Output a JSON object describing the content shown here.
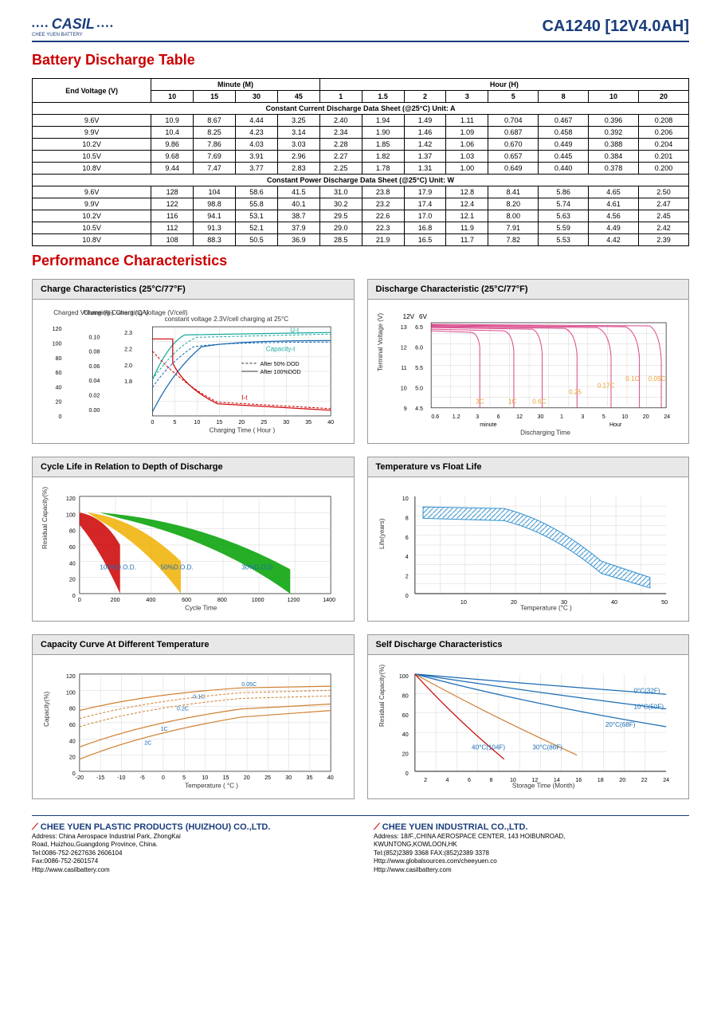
{
  "header": {
    "logo_text": "CASIL",
    "logo_sub": "CHEE YUEN BATTERY",
    "product_code": "CA1240 [12V4.0AH]"
  },
  "section1_title": "Battery Discharge Table",
  "section2_title": "Performance Characteristics",
  "table": {
    "end_voltage_label": "End Voltage (V)",
    "minute_label": "Minute (M)",
    "hour_label": "Hour (H)",
    "minute_cols": [
      "10",
      "15",
      "30",
      "45"
    ],
    "hour_cols": [
      "1",
      "1.5",
      "2",
      "3",
      "5",
      "8",
      "10",
      "20"
    ],
    "section_a_label": "Constant Current Discharge Data Sheet   (@25°C)   Unit: A",
    "section_b_label": "Constant Power Discharge Data Sheet   (@25°C)   Unit: W",
    "voltages": [
      "9.6V",
      "9.9V",
      "10.2V",
      "10.5V",
      "10.8V"
    ],
    "current_rows": [
      [
        "10.9",
        "8.67",
        "4.44",
        "3.25",
        "2.40",
        "1.94",
        "1.49",
        "1.11",
        "0.704",
        "0.467",
        "0.396",
        "0.208"
      ],
      [
        "10.4",
        "8.25",
        "4.23",
        "3.14",
        "2.34",
        "1.90",
        "1.46",
        "1.09",
        "0.687",
        "0.458",
        "0.392",
        "0.206"
      ],
      [
        "9.86",
        "7.86",
        "4.03",
        "3.03",
        "2.28",
        "1.85",
        "1.42",
        "1.06",
        "0.670",
        "0.449",
        "0.388",
        "0.204"
      ],
      [
        "9.68",
        "7.69",
        "3.91",
        "2.96",
        "2.27",
        "1.82",
        "1.37",
        "1.03",
        "0.657",
        "0.445",
        "0.384",
        "0.201"
      ],
      [
        "9.44",
        "7.47",
        "3.77",
        "2.83",
        "2.25",
        "1.78",
        "1.31",
        "1.00",
        "0.649",
        "0.440",
        "0.378",
        "0.200"
      ]
    ],
    "power_rows": [
      [
        "128",
        "104",
        "58.6",
        "41.5",
        "31.0",
        "23.8",
        "17.9",
        "12.8",
        "8.41",
        "5.86",
        "4.65",
        "2.50"
      ],
      [
        "122",
        "98.8",
        "55.8",
        "40.1",
        "30.2",
        "23.2",
        "17.4",
        "12.4",
        "8.20",
        "5.74",
        "4.61",
        "2.47"
      ],
      [
        "116",
        "94.1",
        "53.1",
        "38.7",
        "29.5",
        "22.6",
        "17.0",
        "12.1",
        "8.00",
        "5.63",
        "4.56",
        "2.45"
      ],
      [
        "112",
        "91.3",
        "52.1",
        "37.9",
        "29.0",
        "22.3",
        "16.8",
        "11.9",
        "7.91",
        "5.59",
        "4.49",
        "2.42"
      ],
      [
        "108",
        "88.3",
        "50.5",
        "36.9",
        "28.5",
        "21.9",
        "16.5",
        "11.7",
        "7.82",
        "5.53",
        "4.42",
        "2.39"
      ]
    ]
  },
  "charts": {
    "charge": {
      "title": "Charge Characteristics (25°C/77°F)",
      "y1_label": "Charged Volume (%)",
      "y2_label": "Charging Current (CA)",
      "y3_label": "Charging Voltage (V/cell)",
      "x_label": "Charging Time ( Hour )",
      "subtitle": "constant voltage 2.3V/cell charging at 25°C",
      "legend_a": "After 50% DOD",
      "legend_b": "After 100%DOD",
      "label_ut": "U-t",
      "label_capacity": "Capacity-t",
      "label_it": "I-t",
      "y1_ticks": [
        "0",
        "20",
        "40",
        "60",
        "80",
        "100",
        "120"
      ],
      "y2_ticks": [
        "0.00",
        "0.02",
        "0.04",
        "0.06",
        "0.08",
        "0.10"
      ],
      "y3_ticks": [
        "1.8",
        "2.0",
        "2.2",
        "2.3"
      ],
      "x_ticks": [
        "0",
        "5",
        "10",
        "15",
        "20",
        "25",
        "30",
        "35",
        "40"
      ],
      "colors": {
        "voltage": "#1aa89e",
        "current": "#cc0000",
        "capacity": "#1a6bb5"
      }
    },
    "discharge": {
      "title": "Discharge Characteristic (25°C/77°F)",
      "y_label": "Terminal Voltage (V)",
      "x_label": "Discharging Time",
      "y_ticks_12v": [
        "9",
        "10",
        "11",
        "12",
        "13"
      ],
      "y_ticks_6v": [
        "4.5",
        "5.0",
        "5.5",
        "6.0",
        "6.5"
      ],
      "y_header_12v": "12V",
      "y_header_6v": "6V",
      "x_ticks": [
        "0.6",
        "1.2",
        "3",
        "6",
        "12",
        "30",
        "1",
        "3",
        "5",
        "10",
        "20",
        "24"
      ],
      "x_sub_minute": "minute",
      "x_sub_hour": "Hour",
      "rate_labels": [
        "3C",
        "1C",
        "0.6C",
        "0.25",
        "0.17C",
        "0.1C",
        "0.05C"
      ],
      "line_color": "#d94a8c",
      "rate_color": "#e8a030"
    },
    "cycle": {
      "title": "Cycle Life in Relation to Depth of Discharge",
      "y_label": "Residual Capacity(%)",
      "x_label": "Cycle Time",
      "y_ticks": [
        "0",
        "20",
        "40",
        "60",
        "80",
        "100",
        "120"
      ],
      "x_ticks": [
        "0",
        "200",
        "400",
        "600",
        "800",
        "1000",
        "1200",
        "1400"
      ],
      "dod_labels": [
        "100%D.O.D.",
        "50%D.O.D.",
        "30%D.O.D."
      ],
      "colors": {
        "100": "#cc0000",
        "50": "#f0b000",
        "30": "#00a000"
      },
      "label_color": "#1a6bb5"
    },
    "temp_float": {
      "title": "Temperature vs Float Life",
      "y_label": "Life(years)",
      "x_label": "Temperature (°C )",
      "y_ticks": [
        "0",
        "2",
        "4",
        "6",
        "8",
        "10"
      ],
      "x_ticks": [
        "10",
        "20",
        "30",
        "40",
        "50"
      ],
      "band_color": "#3090d0"
    },
    "capacity_temp": {
      "title": "Capacity Curve At Different Temperature",
      "y_label": "Capacity(%)",
      "x_label": "Temperature ( °C )",
      "y_ticks": [
        "0",
        "20",
        "40",
        "60",
        "80",
        "100",
        "120"
      ],
      "x_ticks": [
        "-20",
        "-15",
        "-10",
        "-5",
        "0",
        "5",
        "10",
        "15",
        "20",
        "25",
        "30",
        "35",
        "40"
      ],
      "rate_labels": [
        "0.05C",
        "0.1C",
        "0.2C",
        "1C",
        "2C"
      ],
      "line_color": "#d08030"
    },
    "self_discharge": {
      "title": "Self Discharge Characteristics",
      "y_label": "Residual Capacity(%)",
      "x_label": "Storage Time (Month)",
      "y_ticks": [
        "0",
        "20",
        "40",
        "60",
        "80",
        "100"
      ],
      "x_ticks": [
        "2",
        "4",
        "6",
        "8",
        "10",
        "12",
        "14",
        "16",
        "18",
        "20",
        "22",
        "24"
      ],
      "temp_labels": [
        "0°C(32F)",
        "10°C(50F)",
        "20°C(68F)",
        "30°C(86F)",
        "40°C(104F)"
      ],
      "colors": {
        "0": "#1a6bb5",
        "10": "#1a6bb5",
        "20": "#1a6bb5",
        "30": "#d08030",
        "40": "#cc0000"
      }
    }
  },
  "footer": {
    "left": {
      "company": "CHEE YUEN PLASTIC PRODUCTS (HUIZHOU) CO.,LTD.",
      "address": "Address: China Aerospace Industrial Park, ZhongKai\n                Road, Huizhou,Guangdong Province, China.",
      "tel": "Tel:0086-752-2627636   2606104",
      "fax": "Fax:0086-752-2601574",
      "web": "Http://www.casilbattery.com"
    },
    "right": {
      "company": "CHEE YUEN INDUSTRIAL CO.,LTD.",
      "address": "Address: 18/F.,CHINA AEROSPACE CENTER, 143 HOIBUNROAD,\n                KWUNTONG,KOWLOON,HK",
      "tel": "Tel:(852)2389 3368    FAX:(852)2389 3378",
      "web1": "Http://www.globalsources.com/cheeyuen.co",
      "web2": "Http://www.casilbattery.com"
    }
  }
}
